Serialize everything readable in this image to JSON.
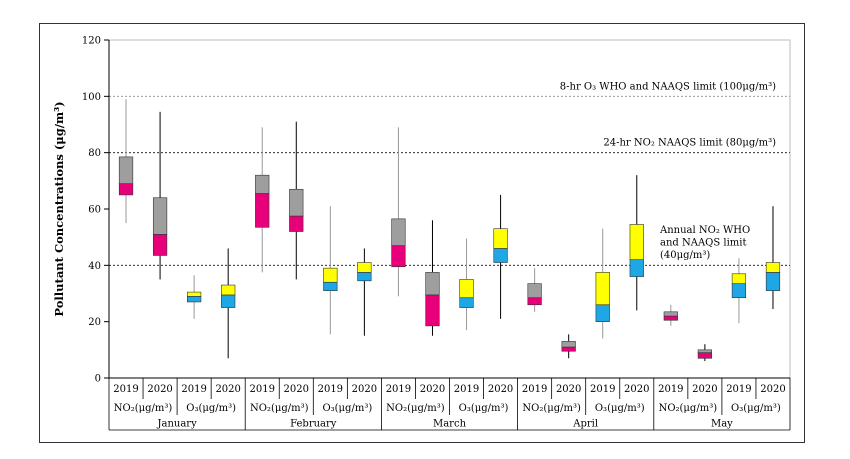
{
  "chart_data": {
    "type": "box",
    "ylabel": "Pollutant Concentrations (μg/m³)",
    "ylim": [
      0,
      120
    ],
    "yticks": [
      0,
      20,
      40,
      60,
      80,
      100,
      120
    ],
    "reference_lines": [
      {
        "value": 100,
        "label": "8-hr O₃ WHO and NAAQS limit (100μg/m³)",
        "style": "dotted"
      },
      {
        "value": 80,
        "label": "24-hr NO₂ NAAQS limit (80μg/m³)",
        "style": "dotted"
      },
      {
        "value": 40,
        "label_lines": [
          "Annual NO₂ WHO",
          "and NAAQS limit",
          "(40μg/m³)"
        ],
        "style": "dotted"
      }
    ],
    "months": [
      "January",
      "February",
      "March",
      "April",
      "May"
    ],
    "pollutants": [
      "NO₂(μg/m³)",
      "O₃(μg/m³)"
    ],
    "years": [
      "2019",
      "2020"
    ],
    "colors": {
      "no2_q1": "#e8007a",
      "o3_q1": "#1ea7e4",
      "no2_q3": "#9e9e9e",
      "o3_q3": "#ffff00",
      "whisker_2019": "#999999",
      "whisker_2020": "#000000"
    },
    "boxes": [
      {
        "month": "January",
        "pollutant": "NO2",
        "year": "2019",
        "min": 55,
        "q1": 65,
        "median": 69,
        "q3": 78.5,
        "max": 99
      },
      {
        "month": "January",
        "pollutant": "NO2",
        "year": "2020",
        "min": 35,
        "q1": 43.5,
        "median": 51,
        "q3": 64,
        "max": 94.5
      },
      {
        "month": "January",
        "pollutant": "O3",
        "year": "2019",
        "min": 21,
        "q1": 27,
        "median": 29,
        "q3": 30.5,
        "max": 36.5
      },
      {
        "month": "January",
        "pollutant": "O3",
        "year": "2020",
        "min": 7,
        "q1": 25,
        "median": 29.5,
        "q3": 33,
        "max": 46
      },
      {
        "month": "February",
        "pollutant": "NO2",
        "year": "2019",
        "min": 37.5,
        "q1": 53.5,
        "median": 65.5,
        "q3": 72,
        "max": 89
      },
      {
        "month": "February",
        "pollutant": "NO2",
        "year": "2020",
        "min": 35,
        "q1": 52,
        "median": 57.5,
        "q3": 67,
        "max": 91
      },
      {
        "month": "February",
        "pollutant": "O3",
        "year": "2019",
        "min": 15.5,
        "q1": 31,
        "median": 34,
        "q3": 39,
        "max": 61
      },
      {
        "month": "February",
        "pollutant": "O3",
        "year": "2020",
        "min": 15,
        "q1": 34.5,
        "median": 37.5,
        "q3": 41,
        "max": 46
      },
      {
        "month": "March",
        "pollutant": "NO2",
        "year": "2019",
        "min": 29,
        "q1": 39.5,
        "median": 47,
        "q3": 56.5,
        "max": 89
      },
      {
        "month": "March",
        "pollutant": "NO2",
        "year": "2020",
        "min": 15,
        "q1": 18.5,
        "median": 29.5,
        "q3": 37.5,
        "max": 56
      },
      {
        "month": "March",
        "pollutant": "O3",
        "year": "2019",
        "min": 17,
        "q1": 25,
        "median": 28.5,
        "q3": 35,
        "max": 49.5
      },
      {
        "month": "March",
        "pollutant": "O3",
        "year": "2020",
        "min": 21,
        "q1": 41,
        "median": 46,
        "q3": 53,
        "max": 65
      },
      {
        "month": "April",
        "pollutant": "NO2",
        "year": "2019",
        "min": 23.5,
        "q1": 26,
        "median": 28.5,
        "q3": 33.5,
        "max": 39
      },
      {
        "month": "April",
        "pollutant": "NO2",
        "year": "2020",
        "min": 7,
        "q1": 9.5,
        "median": 11,
        "q3": 13,
        "max": 15.5
      },
      {
        "month": "April",
        "pollutant": "O3",
        "year": "2019",
        "min": 14,
        "q1": 20,
        "median": 26,
        "q3": 37.5,
        "max": 53
      },
      {
        "month": "April",
        "pollutant": "O3",
        "year": "2020",
        "min": 24,
        "q1": 36,
        "median": 42,
        "q3": 54.5,
        "max": 72
      },
      {
        "month": "May",
        "pollutant": "NO2",
        "year": "2019",
        "min": 18.5,
        "q1": 20.5,
        "median": 22,
        "q3": 23.5,
        "max": 26
      },
      {
        "month": "May",
        "pollutant": "NO2",
        "year": "2020",
        "min": 6,
        "q1": 7,
        "median": 9,
        "q3": 10,
        "max": 12
      },
      {
        "month": "May",
        "pollutant": "O3",
        "year": "2019",
        "min": 19.5,
        "q1": 28.5,
        "median": 33.5,
        "q3": 37,
        "max": 42.5
      },
      {
        "month": "May",
        "pollutant": "O3",
        "year": "2020",
        "min": 24.5,
        "q1": 31,
        "median": 37.5,
        "q3": 41,
        "max": 61
      }
    ]
  }
}
